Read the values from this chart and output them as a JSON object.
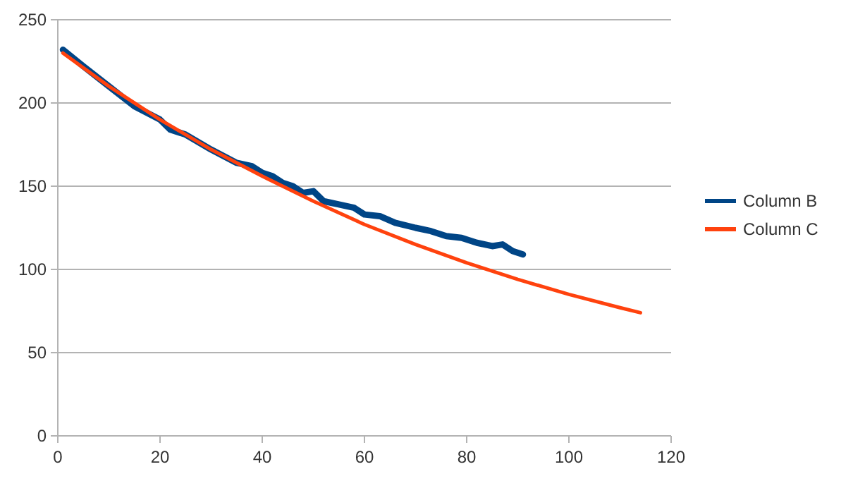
{
  "chart_data": {
    "type": "line",
    "xlim": [
      0,
      120
    ],
    "xticks": [
      0,
      20,
      40,
      60,
      80,
      100,
      120
    ],
    "ylim": [
      0,
      250
    ],
    "yticks": [
      0,
      50,
      100,
      150,
      200,
      250
    ],
    "grid": "y",
    "legend": "right",
    "marker": "none",
    "line_style": "solid",
    "series": [
      {
        "name": "Column B",
        "color": "#004586",
        "x": [
          1,
          5,
          10,
          15,
          20,
          22,
          25,
          30,
          35,
          38,
          40,
          42,
          44,
          46,
          48,
          50,
          52,
          55,
          58,
          60,
          63,
          66,
          70,
          73,
          76,
          79,
          82,
          85,
          87,
          89,
          91
        ],
        "values": [
          232,
          222,
          210,
          198,
          190,
          184,
          181,
          172,
          164,
          162,
          158,
          156,
          152,
          150,
          146,
          147,
          141,
          139,
          137,
          133,
          132,
          128,
          125,
          123,
          120,
          119,
          116,
          114,
          115,
          111,
          109
        ]
      },
      {
        "name": "Column C",
        "color": "#ff420e",
        "x": [
          1,
          10,
          20,
          30,
          40,
          50,
          60,
          70,
          80,
          90,
          100,
          110,
          114
        ],
        "values": [
          230,
          210,
          190,
          172,
          156,
          141,
          127,
          115,
          104,
          94,
          85,
          77,
          74
        ]
      }
    ]
  }
}
